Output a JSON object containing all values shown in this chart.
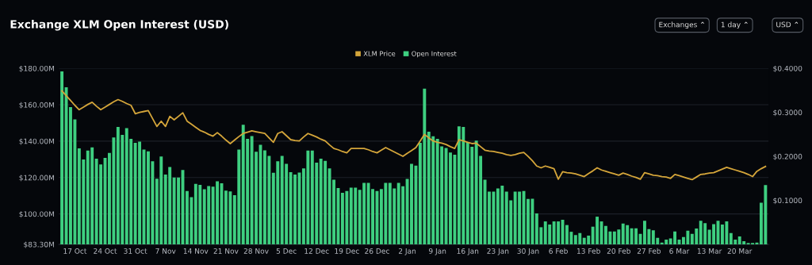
{
  "chart_data": {
    "type": "bar",
    "title": "Exchange XLM Open Interest (USD)",
    "annotations": [
      "Exchanges ⌃",
      "1 day ⌃",
      "USD ⌃"
    ],
    "categories": [
      null,
      null,
      null,
      "17 Oct",
      null,
      null,
      null,
      null,
      null,
      null,
      "24 Oct",
      null,
      null,
      null,
      null,
      null,
      null,
      "31 Oct",
      null,
      null,
      null,
      null,
      null,
      null,
      "7 Nov",
      null,
      null,
      null,
      null,
      null,
      null,
      "14 Nov",
      null,
      null,
      null,
      null,
      null,
      null,
      "21 Nov",
      null,
      null,
      null,
      null,
      null,
      null,
      "28 Nov",
      null,
      null,
      null,
      null,
      null,
      null,
      "5 Dec",
      null,
      null,
      null,
      null,
      null,
      null,
      "12 Dec",
      null,
      null,
      null,
      null,
      null,
      null,
      "19 Dec",
      null,
      null,
      null,
      null,
      null,
      null,
      "26 Dec",
      null,
      null,
      null,
      null,
      null,
      null,
      "2 Jan",
      null,
      null,
      null,
      null,
      null,
      null,
      "9 Jan",
      null,
      null,
      null,
      null,
      null,
      null,
      "16 Jan",
      null,
      null,
      null,
      null,
      null,
      null,
      "23 Jan",
      null,
      null,
      null,
      null,
      null,
      null,
      "30 Jan",
      null,
      null,
      null,
      null,
      null,
      null,
      "6 Feb",
      null,
      null,
      null,
      null,
      null,
      null,
      "13 Feb",
      null,
      null,
      null,
      null,
      null,
      null,
      "20 Feb",
      null,
      null,
      null,
      null,
      null,
      null,
      "27 Feb",
      null,
      null,
      null,
      null,
      null,
      null,
      "6 Mar",
      null,
      null,
      null,
      null,
      null,
      null,
      "13 Mar",
      null,
      null,
      null,
      null,
      null,
      null,
      "20 Mar",
      null,
      null,
      null,
      null,
      null,
      null
    ],
    "series": [
      {
        "name": "Open Interest",
        "color": "#3ecf80",
        "values": [
          178.3,
          169.6,
          158.7,
          151.9,
          136,
          129.9,
          134.8,
          136.6,
          130.4,
          127.2,
          130.8,
          133.5,
          142,
          147.8,
          143.5,
          147.2,
          141.3,
          139.1,
          139.7,
          135.4,
          134.4,
          129,
          119.4,
          131.6,
          121.6,
          125.8,
          120,
          120,
          124.2,
          112.6,
          109.2,
          116.5,
          116,
          113.6,
          115.3,
          115,
          117.9,
          116.8,
          112.8,
          112.4,
          110.3,
          135.4,
          149,
          141.3,
          142.8,
          134.2,
          138,
          134.9,
          131.9,
          122.6,
          129,
          131.9,
          127.5,
          123,
          121.7,
          122.7,
          125,
          134.8,
          134.8,
          128.2,
          130.4,
          129.2,
          125,
          118.8,
          114.2,
          111.6,
          112.6,
          114.5,
          114.5,
          113.3,
          117.1,
          117.1,
          113.7,
          112.6,
          113.7,
          117.1,
          117.1,
          114,
          117.1,
          115.2,
          119.2,
          127.5,
          126.5,
          139.1,
          168.8,
          145.2,
          142.7,
          141.3,
          137.1,
          136.2,
          133.7,
          132.6,
          148.1,
          147.8,
          139.5,
          136.9,
          140.3,
          131.9,
          118.8,
          112.3,
          112.3,
          114,
          115.5,
          112.3,
          107.5,
          112.3,
          112.3,
          112.6,
          108.2,
          108.4,
          100.3,
          92.7,
          95.9,
          94.2,
          95.9,
          95.9,
          96.8,
          93.9,
          90.2,
          88.4,
          89.5,
          86.9,
          88.1,
          93,
          98.5,
          95.9,
          93.4,
          90.4,
          90.4,
          91.5,
          94.7,
          93.9,
          92.1,
          92.1,
          89.1,
          96.3,
          91.7,
          91,
          86.9,
          84.3,
          85.9,
          86.5,
          90.4,
          85.9,
          87.3,
          90.8,
          89.1,
          92,
          96.3,
          94.9,
          91.3,
          94.4,
          96.3,
          94.2,
          95.9,
          89.5,
          85.9,
          87.6,
          85,
          84,
          84,
          84.3,
          106.2,
          115.9
        ]
      },
      {
        "name": "XLM Price",
        "type": "line",
        "axis": "y2",
        "color": "#d4a53a",
        "values": [
          0.349,
          0.338,
          0.327,
          0.316,
          0.306,
          0.312,
          0.318,
          0.323,
          0.314,
          0.306,
          0.312,
          0.318,
          0.324,
          0.329,
          0.325,
          0.32,
          0.316,
          0.297,
          0.3,
          0.302,
          0.304,
          0.286,
          0.268,
          0.28,
          0.268,
          0.291,
          0.283,
          0.291,
          0.299,
          0.28,
          0.273,
          0.266,
          0.259,
          0.255,
          0.25,
          0.246,
          0.254,
          0.246,
          0.237,
          0.229,
          0.237,
          0.245,
          0.252,
          0.255,
          0.258,
          0.256,
          0.254,
          0.252,
          0.242,
          0.232,
          0.252,
          0.256,
          0.247,
          0.238,
          0.236,
          0.235,
          0.244,
          0.252,
          0.248,
          0.244,
          0.239,
          0.235,
          0.226,
          0.218,
          0.215,
          0.211,
          0.208,
          0.218,
          0.218,
          0.218,
          0.218,
          0.215,
          0.211,
          0.208,
          0.214,
          0.22,
          0.215,
          0.21,
          0.205,
          0.2,
          0.207,
          0.213,
          0.22,
          0.235,
          0.25,
          0.242,
          0.235,
          0.232,
          0.23,
          0.227,
          0.222,
          0.218,
          0.238,
          0.235,
          0.232,
          0.229,
          0.23,
          0.222,
          0.214,
          0.212,
          0.211,
          0.209,
          0.207,
          0.204,
          0.202,
          0.204,
          0.207,
          0.209,
          0.2,
          0.19,
          0.178,
          0.174,
          0.178,
          0.175,
          0.172,
          0.148,
          0.165,
          0.163,
          0.162,
          0.16,
          0.157,
          0.154,
          0.161,
          0.167,
          0.174,
          0.169,
          0.166,
          0.163,
          0.16,
          0.157,
          0.162,
          0.159,
          0.155,
          0.152,
          0.148,
          0.163,
          0.16,
          0.157,
          0.156,
          0.154,
          0.153,
          0.15,
          0.159,
          0.156,
          0.153,
          0.15,
          0.147,
          0.153,
          0.159,
          0.16,
          0.162,
          0.163,
          0.167,
          0.171,
          0.175,
          0.172,
          0.169,
          0.166,
          0.163,
          0.159,
          0.154,
          0.166,
          0.172,
          0.177
        ]
      }
    ],
    "ylim": [
      83.3,
      180
    ],
    "yticks": [
      {
        "value": 83.3,
        "label": "$83.30M"
      },
      {
        "value": 100,
        "label": "$100.00M"
      },
      {
        "value": 120,
        "label": "$120.00M"
      },
      {
        "value": 140,
        "label": "$140.00M"
      },
      {
        "value": 160,
        "label": "$160.00M"
      },
      {
        "value": 180,
        "label": "$180.00M"
      }
    ],
    "y2lim": [
      0,
      0.4
    ],
    "y2ticks": [
      {
        "value": 0.1,
        "label": "$0.1000"
      },
      {
        "value": 0.2,
        "label": "$0.2000"
      },
      {
        "value": 0.3,
        "label": "$0.3000"
      },
      {
        "value": 0.4,
        "label": "$0.4000"
      }
    ],
    "grid": "y",
    "legend": "top"
  }
}
